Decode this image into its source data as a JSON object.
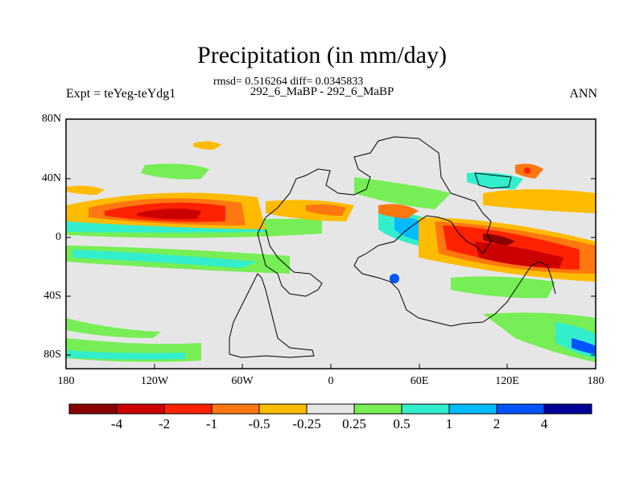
{
  "title": "Precipitation (in mm/day)",
  "stats": "rmsd= 0.516264  diff= 0.0345833",
  "subtitle": "292_6_MaBP - 292_6_MaBP",
  "expt": "Expt = teYeg-teYdg1",
  "season": "ANN",
  "lat_labels": [
    "80N",
    "40N",
    "0",
    "40S",
    "80S"
  ],
  "lon_labels": [
    "180",
    "120W",
    "60W",
    "0",
    "60E",
    "120E",
    "180"
  ],
  "colorbar": {
    "colors": [
      "#8b0000",
      "#cc0000",
      "#ff2200",
      "#ff7711",
      "#ffbb00",
      "#e6e6e6",
      "#77ee55",
      "#33eecc",
      "#00bbff",
      "#0055ff",
      "#000099"
    ],
    "labels": [
      "-4",
      "-2",
      "-1",
      "-0.5",
      "-0.25",
      "0.25",
      "0.5",
      "1",
      "2",
      "4"
    ]
  },
  "map": {
    "background": "#e6e6e6",
    "land_outline": "black"
  }
}
